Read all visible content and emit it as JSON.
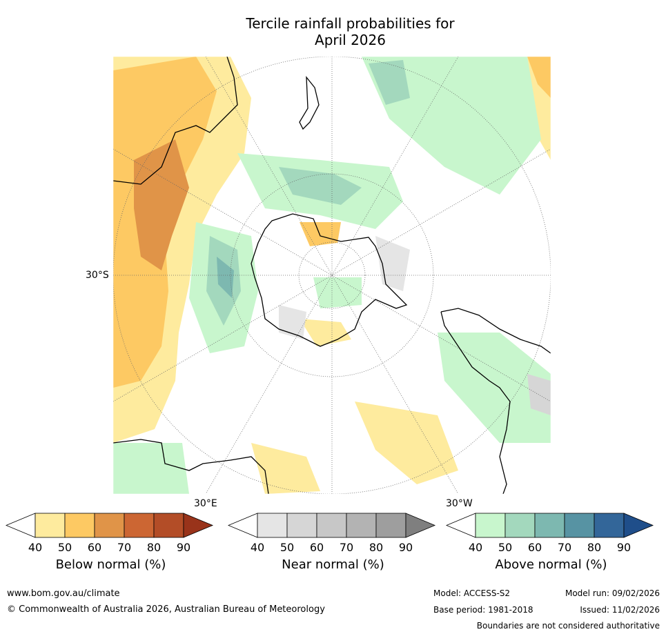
{
  "title_line1": "Tercile rainfall probabilities for",
  "title_line2": "April 2026",
  "map": {
    "lat_label": "30°S",
    "lon_label_east": "30°E",
    "lon_label_west": "30°W"
  },
  "colorbars": [
    {
      "name": "below",
      "label": "Below normal (%)",
      "ticks": [
        "40",
        "50",
        "60",
        "70",
        "80",
        "90"
      ],
      "colors": [
        "#ffffff",
        "#feeb9e",
        "#fdc963",
        "#e09448",
        "#cc6633",
        "#b34d27",
        "#99331a"
      ]
    },
    {
      "name": "near",
      "label": "Near normal (%)",
      "ticks": [
        "40",
        "50",
        "60",
        "70",
        "80",
        "90"
      ],
      "colors": [
        "#ffffff",
        "#e5e5e5",
        "#d6d6d6",
        "#c7c7c7",
        "#b3b3b3",
        "#9e9e9e",
        "#7f7f7f"
      ]
    },
    {
      "name": "above",
      "label": "Above normal (%)",
      "ticks": [
        "40",
        "50",
        "60",
        "70",
        "80",
        "90"
      ],
      "colors": [
        "#ffffff",
        "#c8f6cd",
        "#a3d8bd",
        "#7db8b0",
        "#5793a3",
        "#336699",
        "#1f4e8a"
      ]
    }
  ],
  "footer": {
    "website": "www.bom.gov.au/climate",
    "copyright": "© Commonwealth of Australia 2026, Australian Bureau of Meteorology",
    "model": "Model: ACCESS-S2",
    "model_run": "Model run: 09/02/2026",
    "base_period": "Base period: 1981-2018",
    "issued": "Issued: 11/02/2026",
    "disclaimer": "Boundaries are not considered authoritative"
  }
}
